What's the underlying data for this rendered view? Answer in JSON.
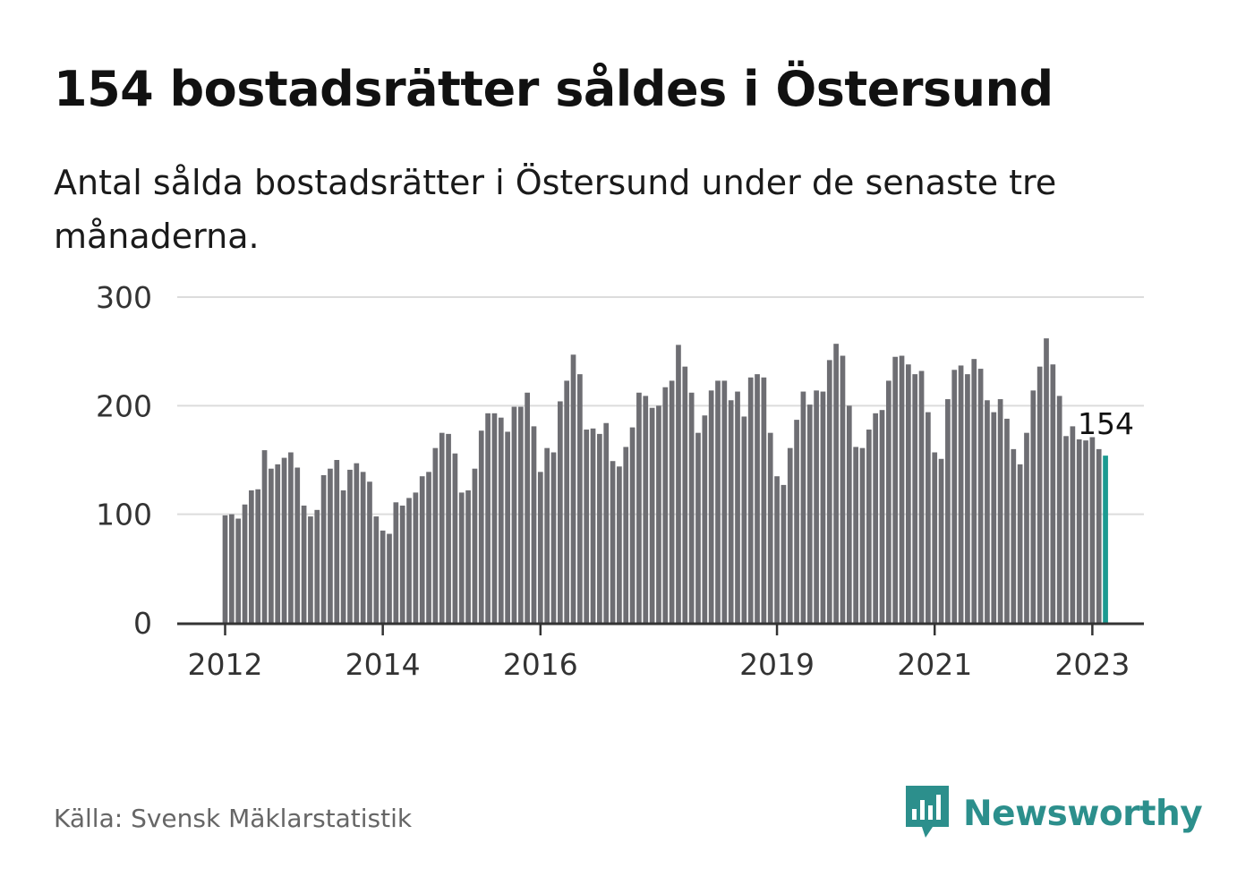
{
  "title": "154 bostadsrätter såldes i Östersund",
  "subtitle": "Antal sålda bostadsrätter i Östersund under de senaste tre månaderna.",
  "source": "Källa: Svensk Mäklarstatistik",
  "brand": {
    "name": "Newsworthy",
    "icon": "newsworthy-logo-icon",
    "color": "#2c8f8c"
  },
  "chart_data": {
    "type": "bar",
    "title": "154 bostadsrätter såldes i Östersund",
    "subtitle": "Antal sålda bostadsrätter i Östersund under de senaste tre månaderna.",
    "xlabel": "",
    "ylabel": "",
    "ylim": [
      0,
      300
    ],
    "yticks": [
      0,
      100,
      200,
      300
    ],
    "xticks": [
      "2012",
      "2014",
      "2016",
      "2019",
      "2021",
      "2023"
    ],
    "grid": true,
    "bar_color": "#6e6e73",
    "highlight_color": "#1b9a91",
    "start": "2012-01",
    "frequency": "monthly",
    "highlight_label": "154",
    "values": [
      99,
      100,
      96,
      109,
      122,
      123,
      159,
      142,
      146,
      152,
      157,
      143,
      108,
      98,
      104,
      136,
      142,
      150,
      122,
      141,
      147,
      139,
      130,
      98,
      85,
      82,
      111,
      108,
      115,
      120,
      135,
      139,
      161,
      175,
      174,
      156,
      120,
      122,
      142,
      177,
      193,
      193,
      189,
      176,
      199,
      199,
      212,
      181,
      139,
      161,
      157,
      204,
      223,
      247,
      229,
      178,
      179,
      174,
      184,
      149,
      144,
      162,
      180,
      212,
      209,
      198,
      200,
      217,
      223,
      256,
      236,
      212,
      175,
      191,
      214,
      223,
      223,
      205,
      213,
      190,
      226,
      229,
      226,
      175,
      135,
      127,
      161,
      187,
      213,
      201,
      214,
      213,
      242,
      257,
      246,
      200,
      162,
      161,
      178,
      193,
      196,
      223,
      245,
      246,
      238,
      229,
      232,
      194,
      157,
      151,
      206,
      233,
      237,
      229,
      243,
      234,
      205,
      194,
      206,
      188,
      160,
      146,
      175,
      214,
      236,
      262,
      238,
      209,
      172,
      181,
      169,
      168,
      171,
      160,
      154
    ]
  }
}
